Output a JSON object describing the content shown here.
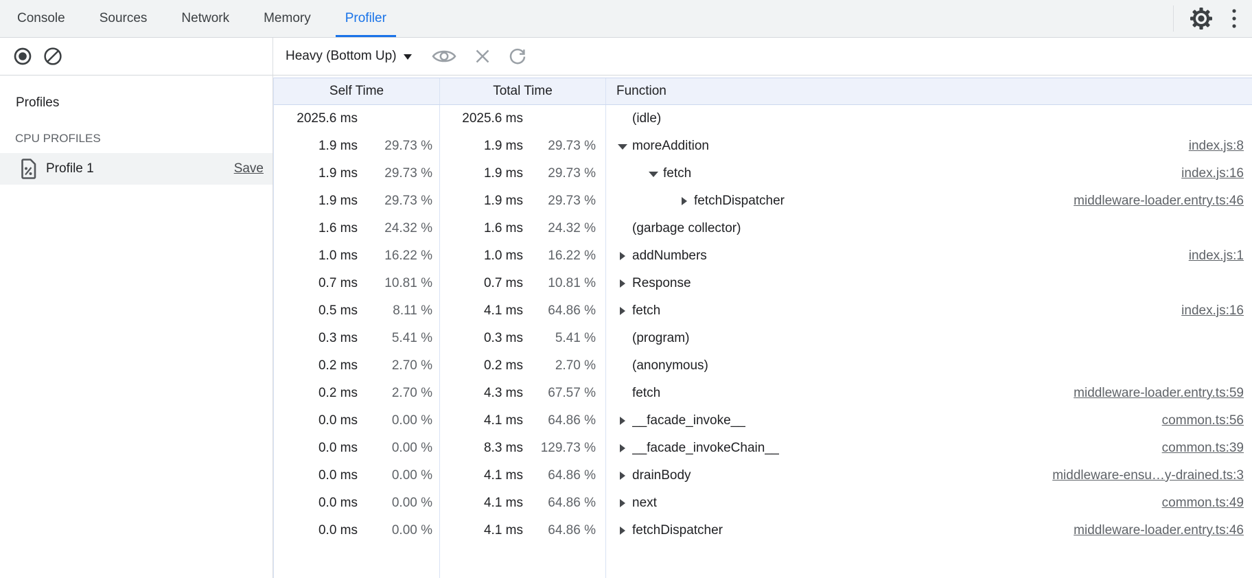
{
  "window": {
    "tabs": [
      {
        "label": "Console"
      },
      {
        "label": "Sources"
      },
      {
        "label": "Network"
      },
      {
        "label": "Memory"
      },
      {
        "label": "Profiler"
      }
    ],
    "active_tab": "Profiler"
  },
  "toolbar": {
    "view_select": "Heavy (Bottom Up)"
  },
  "sidebar": {
    "heading": "Profiles",
    "section_label": "CPU PROFILES",
    "profile": {
      "name": "Profile 1",
      "action_label": "Save",
      "selected": true
    }
  },
  "grid": {
    "columns": {
      "self": "Self Time",
      "total": "Total Time",
      "function": "Function"
    },
    "rows": [
      {
        "self_ms": "2025.6 ms",
        "self_pct": "",
        "total_ms": "2025.6 ms",
        "total_pct": "",
        "fn": "(idle)",
        "level": 0,
        "arrow": "none",
        "link": ""
      },
      {
        "self_ms": "1.9 ms",
        "self_pct": "29.73 %",
        "total_ms": "1.9 ms",
        "total_pct": "29.73 %",
        "fn": "moreAddition",
        "level": 0,
        "arrow": "down",
        "link": "index.js:8"
      },
      {
        "self_ms": "1.9 ms",
        "self_pct": "29.73 %",
        "total_ms": "1.9 ms",
        "total_pct": "29.73 %",
        "fn": "fetch",
        "level": 1,
        "arrow": "down",
        "link": "index.js:16"
      },
      {
        "self_ms": "1.9 ms",
        "self_pct": "29.73 %",
        "total_ms": "1.9 ms",
        "total_pct": "29.73 %",
        "fn": "fetchDispatcher",
        "level": 2,
        "arrow": "right",
        "link": "middleware-loader.entry.ts:46"
      },
      {
        "self_ms": "1.6 ms",
        "self_pct": "24.32 %",
        "total_ms": "1.6 ms",
        "total_pct": "24.32 %",
        "fn": "(garbage collector)",
        "level": 0,
        "arrow": "none",
        "link": ""
      },
      {
        "self_ms": "1.0 ms",
        "self_pct": "16.22 %",
        "total_ms": "1.0 ms",
        "total_pct": "16.22 %",
        "fn": "addNumbers",
        "level": 0,
        "arrow": "right",
        "link": "index.js:1"
      },
      {
        "self_ms": "0.7 ms",
        "self_pct": "10.81 %",
        "total_ms": "0.7 ms",
        "total_pct": "10.81 %",
        "fn": "Response",
        "level": 0,
        "arrow": "right",
        "link": ""
      },
      {
        "self_ms": "0.5 ms",
        "self_pct": "8.11 %",
        "total_ms": "4.1 ms",
        "total_pct": "64.86 %",
        "fn": "fetch",
        "level": 0,
        "arrow": "right",
        "link": "index.js:16"
      },
      {
        "self_ms": "0.3 ms",
        "self_pct": "5.41 %",
        "total_ms": "0.3 ms",
        "total_pct": "5.41 %",
        "fn": "(program)",
        "level": 0,
        "arrow": "none",
        "link": ""
      },
      {
        "self_ms": "0.2 ms",
        "self_pct": "2.70 %",
        "total_ms": "0.2 ms",
        "total_pct": "2.70 %",
        "fn": "(anonymous)",
        "level": 0,
        "arrow": "none",
        "link": ""
      },
      {
        "self_ms": "0.2 ms",
        "self_pct": "2.70 %",
        "total_ms": "4.3 ms",
        "total_pct": "67.57 %",
        "fn": "fetch",
        "level": 0,
        "arrow": "none",
        "link": "middleware-loader.entry.ts:59"
      },
      {
        "self_ms": "0.0 ms",
        "self_pct": "0.00 %",
        "total_ms": "4.1 ms",
        "total_pct": "64.86 %",
        "fn": "__facade_invoke__",
        "level": 0,
        "arrow": "right",
        "link": "common.ts:56"
      },
      {
        "self_ms": "0.0 ms",
        "self_pct": "0.00 %",
        "total_ms": "8.3 ms",
        "total_pct": "129.73 %",
        "fn": "__facade_invokeChain__",
        "level": 0,
        "arrow": "right",
        "link": "common.ts:39"
      },
      {
        "self_ms": "0.0 ms",
        "self_pct": "0.00 %",
        "total_ms": "4.1 ms",
        "total_pct": "64.86 %",
        "fn": "drainBody",
        "level": 0,
        "arrow": "right",
        "link": "middleware-ensu…y-drained.ts:3"
      },
      {
        "self_ms": "0.0 ms",
        "self_pct": "0.00 %",
        "total_ms": "4.1 ms",
        "total_pct": "64.86 %",
        "fn": "next",
        "level": 0,
        "arrow": "right",
        "link": "common.ts:49"
      },
      {
        "self_ms": "0.0 ms",
        "self_pct": "0.00 %",
        "total_ms": "4.1 ms",
        "total_pct": "64.86 %",
        "fn": "fetchDispatcher",
        "level": 0,
        "arrow": "right",
        "link": "middleware-loader.entry.ts:46"
      }
    ]
  },
  "icons": {
    "record": "record-circle",
    "clear": "block-circle",
    "focus": "eye",
    "exclude": "cross",
    "restore": "refresh",
    "settings": "gear",
    "menu": "kebab"
  },
  "colors": {
    "accent": "#1a73e8",
    "tabbar_bg": "#f1f3f4",
    "header_bg": "#eef2fb",
    "grid_divider": "#d8e2f4",
    "text": "#202124",
    "muted": "#5f6368",
    "selected_row_bg": "#f1f3f4"
  }
}
